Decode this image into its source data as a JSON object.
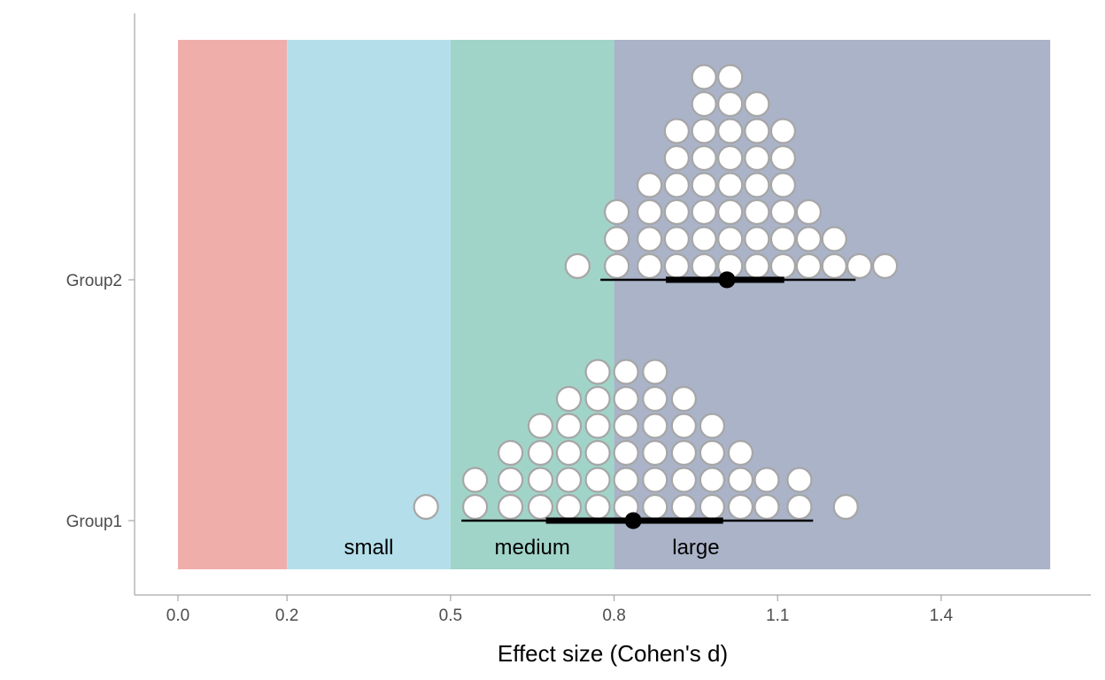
{
  "chart_data": {
    "type": "dotplot",
    "xlabel": "Effect size (Cohen's d)",
    "x_ticks": [
      0.0,
      0.2,
      0.5,
      0.8,
      1.1,
      1.4
    ],
    "x_tick_labels": [
      "0.0",
      "0.2",
      "0.5",
      "0.8",
      "1.1",
      "1.4"
    ],
    "xlim": [
      -0.08,
      1.68
    ],
    "bands": [
      {
        "from": 0.0,
        "to": 0.2,
        "label": "",
        "color": "#f0aeab"
      },
      {
        "from": 0.2,
        "to": 0.5,
        "label": "small",
        "color": "#b4dfea"
      },
      {
        "from": 0.5,
        "to": 0.8,
        "label": "medium",
        "color": "#a1d4c8"
      },
      {
        "from": 0.8,
        "to": 1.6,
        "label": "large",
        "color": "#aab3c8"
      }
    ],
    "groups": [
      {
        "name": "Group1",
        "point": 0.835,
        "interval_inner": [
          0.675,
          1.0
        ],
        "interval_outer": [
          0.52,
          1.165
        ],
        "dot_columns": [
          {
            "x": 0.455,
            "count": 1
          },
          {
            "x": 0.545,
            "count": 2
          },
          {
            "x": 0.61,
            "count": 3
          },
          {
            "x": 0.665,
            "count": 4
          },
          {
            "x": 0.717,
            "count": 5
          },
          {
            "x": 0.77,
            "count": 6
          },
          {
            "x": 0.822,
            "count": 6
          },
          {
            "x": 0.875,
            "count": 6
          },
          {
            "x": 0.928,
            "count": 5
          },
          {
            "x": 0.98,
            "count": 4
          },
          {
            "x": 1.032,
            "count": 3
          },
          {
            "x": 1.08,
            "count": 2
          },
          {
            "x": 1.14,
            "count": 2
          },
          {
            "x": 1.225,
            "count": 1
          }
        ]
      },
      {
        "name": "Group2",
        "point": 1.007,
        "interval_inner": [
          0.895,
          1.112
        ],
        "interval_outer": [
          0.775,
          1.243
        ],
        "dot_columns": [
          {
            "x": 0.733,
            "count": 1
          },
          {
            "x": 0.805,
            "count": 3
          },
          {
            "x": 0.865,
            "count": 4
          },
          {
            "x": 0.915,
            "count": 6
          },
          {
            "x": 0.965,
            "count": 8
          },
          {
            "x": 1.013,
            "count": 8
          },
          {
            "x": 1.062,
            "count": 7
          },
          {
            "x": 1.11,
            "count": 6
          },
          {
            "x": 1.157,
            "count": 3
          },
          {
            "x": 1.204,
            "count": 2
          },
          {
            "x": 1.25,
            "count": 1
          },
          {
            "x": 1.297,
            "count": 1
          }
        ]
      }
    ]
  }
}
